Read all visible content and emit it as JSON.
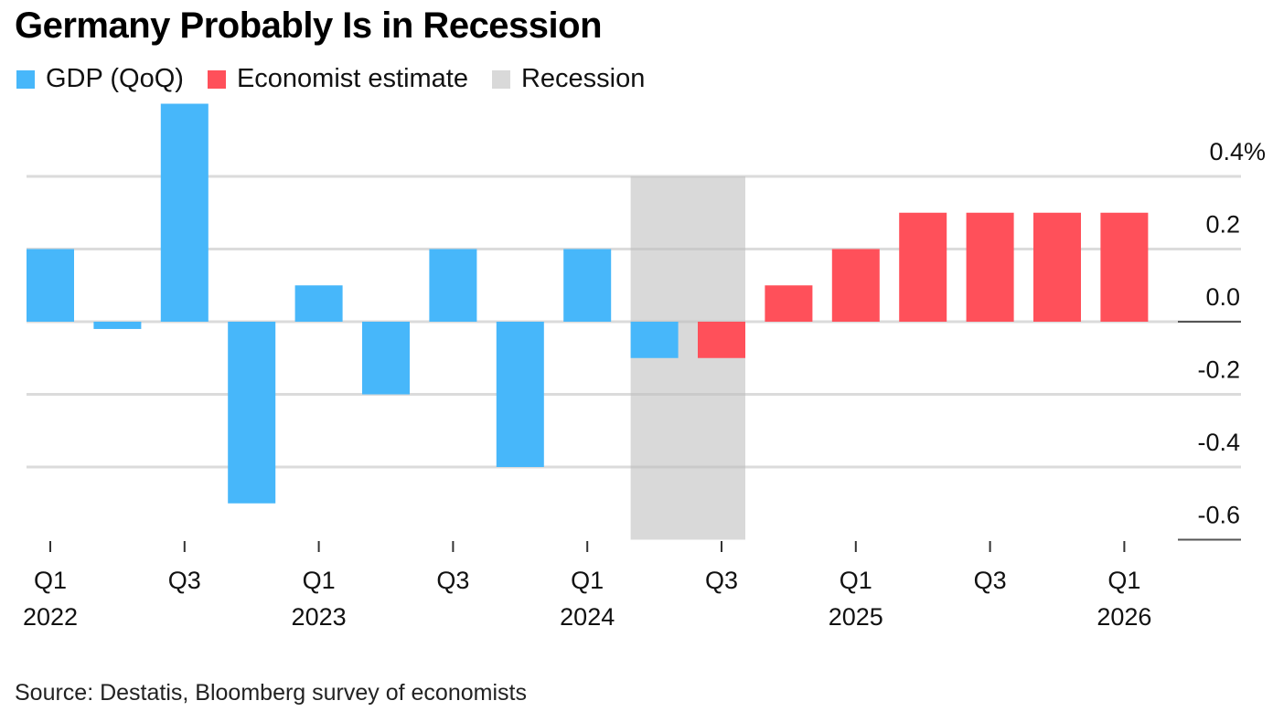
{
  "chart_data": {
    "type": "bar",
    "title": "Germany Probably Is in Recession",
    "source": "Source: Destatis, Bloomberg survey of economists",
    "xlabel": "",
    "ylabel": "",
    "y_unit_suffix": "%",
    "ylim": [
      -0.6,
      0.4
    ],
    "yticks": [
      0.4,
      0.2,
      0.0,
      -0.2,
      -0.4,
      -0.6
    ],
    "ytick_labels": [
      "0.4%",
      "0.2",
      "0.0",
      "-0.2",
      "-0.4",
      "-0.6"
    ],
    "grid": true,
    "legend_position": "top-left",
    "categories": [
      "Q1 2022",
      "Q2 2022",
      "Q3 2022",
      "Q4 2022",
      "Q1 2023",
      "Q2 2023",
      "Q3 2023",
      "Q4 2023",
      "Q1 2024",
      "Q2 2024",
      "Q3 2024",
      "Q4 2024",
      "Q1 2025",
      "Q2 2025",
      "Q3 2025",
      "Q4 2025",
      "Q1 2026"
    ],
    "x_tick_labels": [
      {
        "index": 0,
        "quarter": "Q1",
        "year": "2022"
      },
      {
        "index": 2,
        "quarter": "Q3",
        "year": ""
      },
      {
        "index": 4,
        "quarter": "Q1",
        "year": "2023"
      },
      {
        "index": 6,
        "quarter": "Q3",
        "year": ""
      },
      {
        "index": 8,
        "quarter": "Q1",
        "year": "2024"
      },
      {
        "index": 10,
        "quarter": "Q3",
        "year": ""
      },
      {
        "index": 12,
        "quarter": "Q1",
        "year": "2025"
      },
      {
        "index": 14,
        "quarter": "Q3",
        "year": ""
      },
      {
        "index": 16,
        "quarter": "Q1",
        "year": "2026"
      }
    ],
    "series": [
      {
        "name": "GDP (QoQ)",
        "color": "#47b7fa",
        "values": [
          0.2,
          -0.02,
          0.6,
          -0.5,
          0.1,
          -0.2,
          0.2,
          -0.4,
          0.2,
          -0.1,
          null,
          null,
          null,
          null,
          null,
          null,
          null
        ]
      },
      {
        "name": "Economist estimate",
        "color": "#ff505a",
        "values": [
          null,
          null,
          null,
          null,
          null,
          null,
          null,
          null,
          null,
          null,
          -0.1,
          0.1,
          0.2,
          0.3,
          0.3,
          0.3,
          0.3
        ]
      }
    ],
    "shaded_regions": [
      {
        "name": "Recession",
        "color": "#d9d9d9",
        "from": "Q2 2024",
        "to": "Q3 2024"
      }
    ]
  }
}
